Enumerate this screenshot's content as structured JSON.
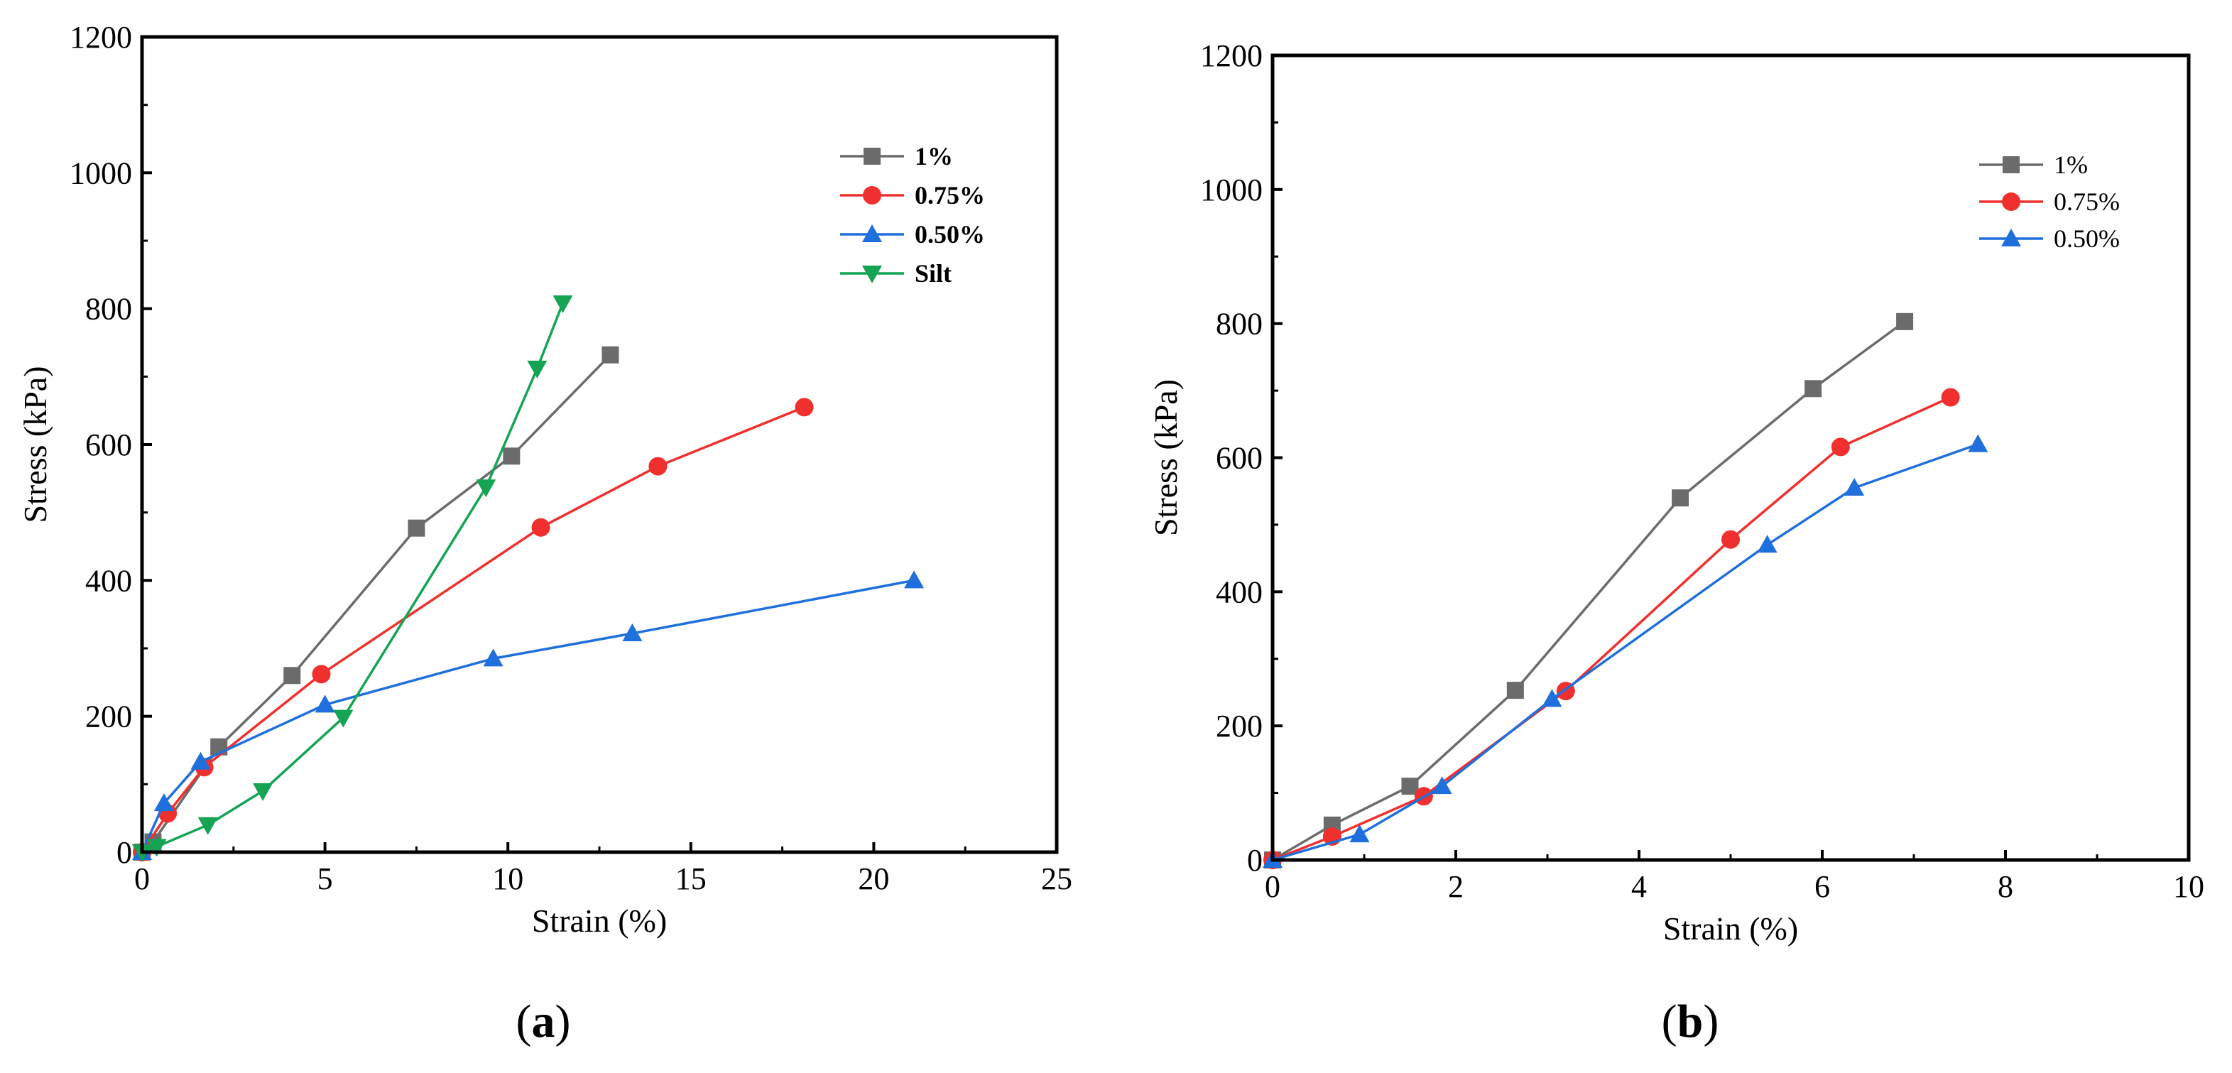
{
  "chart_data": [
    {
      "type": "line",
      "panel_label": "a",
      "xlabel": "Strain (%)",
      "ylabel": "Stress (kPa)",
      "xlim": [
        0,
        25
      ],
      "ylim": [
        0,
        1200
      ],
      "x_ticks": [
        0,
        5,
        10,
        15,
        20,
        25
      ],
      "y_ticks": [
        0,
        200,
        400,
        600,
        800,
        1000,
        1200
      ],
      "legend_position": "top-right",
      "legend_bold": true,
      "series": [
        {
          "name": "1%",
          "color": "#6b6b6b",
          "marker": "square",
          "points": [
            [
              0,
              0
            ],
            [
              0.3,
              15
            ],
            [
              2.1,
              155
            ],
            [
              4.1,
              260
            ],
            [
              7.5,
              477
            ],
            [
              10.1,
              583
            ],
            [
              12.8,
              732
            ]
          ]
        },
        {
          "name": "0.75%",
          "color": "#f0302e",
          "marker": "circle",
          "points": [
            [
              0,
              0
            ],
            [
              0.7,
              57
            ],
            [
              1.7,
              125
            ],
            [
              4.9,
              262
            ],
            [
              10.9,
              478
            ],
            [
              14.1,
              568
            ],
            [
              18.1,
              655
            ]
          ]
        },
        {
          "name": "0.50%",
          "color": "#1f6fdc",
          "marker": "triangle-up",
          "points": [
            [
              0,
              0
            ],
            [
              0.6,
              72
            ],
            [
              1.6,
              133
            ],
            [
              5.0,
              217
            ],
            [
              9.6,
              285
            ],
            [
              13.4,
              322
            ],
            [
              21.1,
              400
            ]
          ]
        },
        {
          "name": "Silt",
          "color": "#14a454",
          "marker": "triangle-down",
          "points": [
            [
              0,
              0
            ],
            [
              0.4,
              8
            ],
            [
              1.8,
              40
            ],
            [
              3.3,
              90
            ],
            [
              5.5,
              198
            ],
            [
              9.4,
              537
            ],
            [
              10.8,
              712
            ],
            [
              11.5,
              808
            ]
          ]
        }
      ]
    },
    {
      "type": "line",
      "panel_label": "b",
      "xlabel": "Strain (%)",
      "ylabel": "Stress (kPa)",
      "xlim": [
        0,
        10
      ],
      "ylim": [
        0,
        1200
      ],
      "x_ticks": [
        0,
        2,
        4,
        6,
        8,
        10
      ],
      "y_ticks": [
        0,
        200,
        400,
        600,
        800,
        1000,
        1200
      ],
      "legend_position": "top-right",
      "legend_bold": false,
      "series": [
        {
          "name": "1%",
          "color": "#6b6b6b",
          "marker": "square",
          "points": [
            [
              0,
              0
            ],
            [
              0.65,
              52
            ],
            [
              1.5,
              110
            ],
            [
              2.65,
              253
            ],
            [
              4.45,
              540
            ],
            [
              5.9,
              703
            ],
            [
              6.9,
              803
            ]
          ]
        },
        {
          "name": "0.75%",
          "color": "#f0302e",
          "marker": "circle",
          "points": [
            [
              0,
              0
            ],
            [
              0.65,
              35
            ],
            [
              1.65,
              95
            ],
            [
              3.2,
              252
            ],
            [
              5.0,
              478
            ],
            [
              6.2,
              616
            ],
            [
              7.4,
              690
            ]
          ]
        },
        {
          "name": "0.50%",
          "color": "#1f6fdc",
          "marker": "triangle-up",
          "points": [
            [
              0,
              0
            ],
            [
              0.95,
              38
            ],
            [
              1.85,
              110
            ],
            [
              3.05,
              240
            ],
            [
              5.4,
              470
            ],
            [
              6.35,
              555
            ],
            [
              7.7,
              620
            ]
          ]
        }
      ]
    }
  ]
}
